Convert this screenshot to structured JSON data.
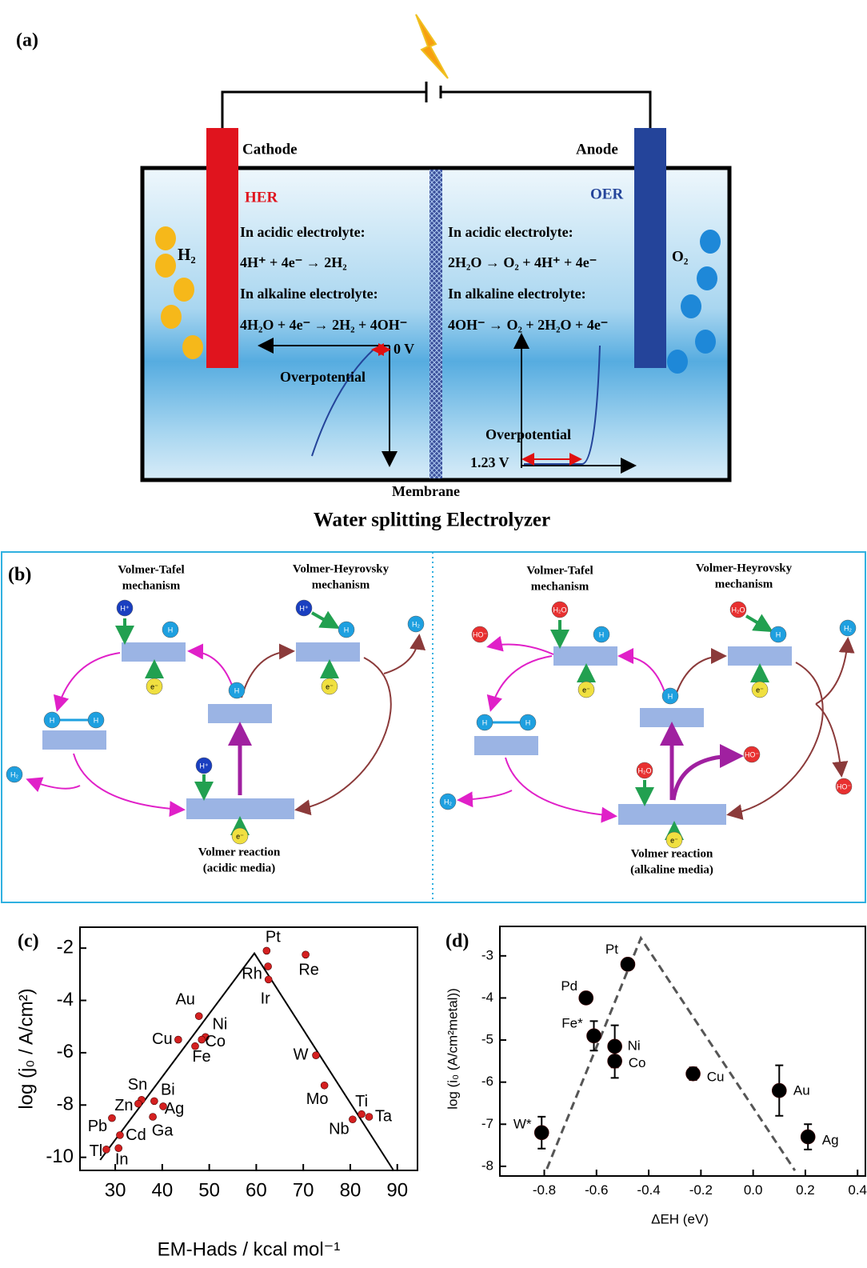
{
  "panel_a": {
    "label": "(a)",
    "cathode": "Cathode",
    "anode": "Anode",
    "her": "HER",
    "oer": "OER",
    "h2": "H₂",
    "o2": "O₂",
    "her_lines": [
      "In acidic electrolyte:",
      "4H⁺ + 4e⁻ → 2H₂",
      "In alkaline electrolyte:",
      "4H₂O + 4e⁻ → 2H₂ + 4OH⁻"
    ],
    "oer_lines": [
      "In acidic electrolyte:",
      "2H₂O → O₂ + 4H⁺ + 4e⁻",
      "In alkaline electrolyte:",
      "4OH⁻ → O₂ + 2H₂O + 4e⁻"
    ],
    "zero_v": "0 V",
    "overpotential_left": "Overpotential",
    "overpotential_right": "Overpotential",
    "v123": "1.23 V",
    "membrane": "Membrane",
    "caption": "Water splitting Electrolyzer"
  },
  "panel_b": {
    "label": "(b)",
    "left": {
      "tafel": [
        "Volmer-Tafel",
        "mechanism"
      ],
      "heyrovsky": [
        "Volmer-Heyrovsky",
        "mechanism"
      ],
      "volmer": [
        "Volmer reaction",
        "(acidic media)"
      ],
      "species": [
        "H⁺",
        "H",
        "H⁺",
        "H",
        "H₂",
        "e⁻",
        "e⁻",
        "H",
        "H",
        "H",
        "H₂",
        "H⁺",
        "e⁻"
      ]
    },
    "right": {
      "tafel": [
        "Volmer-Tafel",
        "mechanism"
      ],
      "heyrovsky": [
        "Volmer-Heyrovsky",
        "mechanism"
      ],
      "volmer": [
        "Volmer reaction",
        "(alkaline media)"
      ],
      "species": [
        "H₂O",
        "H",
        "HO⁻",
        "H₂O",
        "H",
        "H₂",
        "e⁻",
        "e⁻",
        "H",
        "H",
        "H",
        "H₂O",
        "HO⁻",
        "HO⁻",
        "H₂",
        "e⁻"
      ]
    }
  },
  "chart_data": [
    {
      "type": "scatter",
      "panel": "(c)",
      "y_label": "log (j₀ / A/cm²)",
      "x_label": "EM-Hads / kcal mol⁻¹",
      "color": "#d42020",
      "labels": [
        "Pt",
        "Rh",
        "Ir",
        "Re",
        "Au",
        "Ni",
        "Co",
        "Fe",
        "Cu",
        "W",
        "Mo",
        "Ti",
        "Nb",
        "Ta",
        "Sn",
        "Zn",
        "Bi",
        "Ag",
        "Ga",
        "Pb",
        "Cd",
        "Tl",
        "In"
      ],
      "x": [
        62.2,
        62.5,
        62.6,
        70.5,
        47.8,
        49.2,
        48.4,
        47.0,
        43.4,
        72.7,
        74.5,
        82.4,
        80.5,
        84.0,
        35.6,
        34.9,
        38.3,
        40.2,
        38.0,
        29.3,
        31.0,
        28.1,
        30.7
      ],
      "values": [
        -2.1,
        -2.7,
        -3.2,
        -2.25,
        -4.6,
        -5.4,
        -5.5,
        -5.75,
        -5.5,
        -6.1,
        -7.25,
        -8.35,
        -8.55,
        -8.45,
        -7.8,
        -7.95,
        -7.85,
        -8.05,
        -8.45,
        -8.5,
        -9.15,
        -9.7,
        -9.65
      ],
      "line": {
        "x": [
          26.8,
          59.6,
          89.2
        ],
        "values": [
          -10.1,
          -2.2,
          -10.5
        ],
        "dashed": false
      },
      "xlim": [
        22.5,
        94.3
      ],
      "ylim": [
        -10.5,
        -1.2
      ],
      "xticks": [
        30,
        40,
        50,
        60,
        70,
        80,
        90
      ],
      "yticks": [
        -2,
        -4,
        -6,
        -8,
        -10
      ]
    },
    {
      "type": "scatter",
      "panel": "(d)",
      "y_label": "log (i₀ (A/cm²metal))",
      "x_label": "ΔEH (eV)",
      "color": "#000000",
      "labels": [
        "W*",
        "Pd",
        "Pt",
        "Fe*",
        "Ni",
        "Co",
        "Cu",
        "Au",
        "Ag"
      ],
      "x": [
        -0.81,
        -0.64,
        -0.48,
        -0.61,
        -0.53,
        -0.53,
        -0.23,
        0.1,
        0.21
      ],
      "values": [
        -7.2,
        -4.0,
        -3.2,
        -4.9,
        -5.15,
        -5.5,
        -5.8,
        -6.2,
        -7.3
      ],
      "errors": [
        0.38,
        0,
        0.1,
        0.35,
        0.5,
        0.4,
        0.15,
        0.6,
        0.3
      ],
      "line": {
        "x": [
          -0.79,
          -0.43,
          0.16
        ],
        "values": [
          -8.06,
          -2.58,
          -8.1
        ],
        "dashed": true
      },
      "xlim": [
        -0.97,
        0.43
      ],
      "ylim": [
        -8.23,
        -2.3
      ],
      "xticks": [
        -0.8,
        -0.6,
        -0.4,
        -0.2,
        {
          "value": 0,
          "label": "0.0"
        },
        0.2,
        0.4
      ],
      "yticks": [
        -3,
        -4,
        -5,
        -6,
        -7,
        -8
      ]
    }
  ]
}
